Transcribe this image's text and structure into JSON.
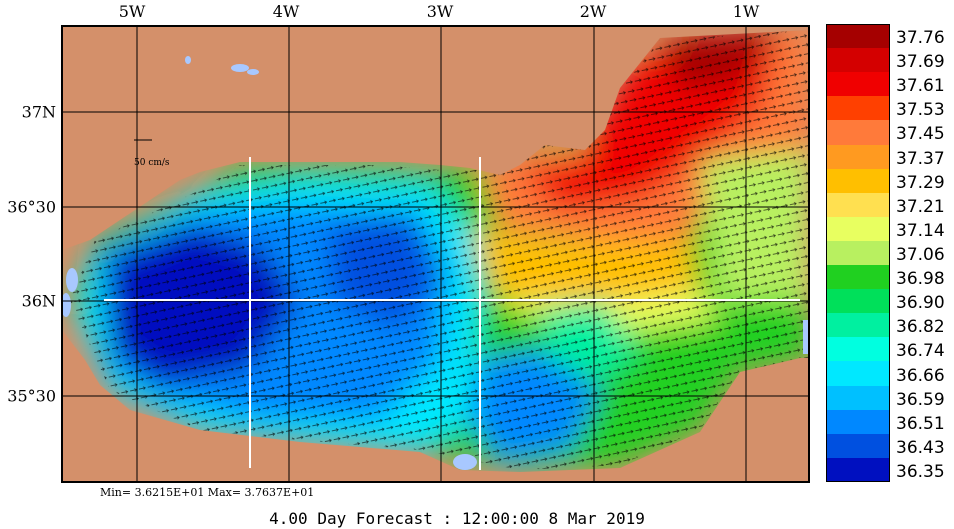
{
  "axes": {
    "lon_ticks": [
      "5W",
      "4W",
      "3W",
      "2W",
      "1W"
    ],
    "lat_ticks": [
      "37N",
      "36°30",
      "36N",
      "35°30"
    ]
  },
  "scale_label": "50 cm/s",
  "legend": {
    "values": [
      "37.76",
      "37.69",
      "37.61",
      "37.53",
      "37.45",
      "37.37",
      "37.29",
      "37.21",
      "37.14",
      "37.06",
      "36.98",
      "36.90",
      "36.82",
      "36.74",
      "36.66",
      "36.59",
      "36.51",
      "36.43",
      "36.35"
    ],
    "colors": [
      "#a50000",
      "#d40000",
      "#f00000",
      "#ff4000",
      "#ff7a3a",
      "#ff9a20",
      "#ffbf00",
      "#ffe050",
      "#e8ff60",
      "#b8f060",
      "#20d020",
      "#00e05a",
      "#00f0a0",
      "#00ffe0",
      "#00e8ff",
      "#00c0ff",
      "#0088ff",
      "#0050e0",
      "#0010c0"
    ]
  },
  "minmax": "Min= 3.6215E+01   Max= 3.7637E+01",
  "forecast": "4.00 Day Forecast : 12:00:00   8 Mar 2019",
  "colors": {
    "land": "#d4906a",
    "inland_water": "#a8c8ff",
    "grid": "#000000",
    "transect": "#ffffff"
  }
}
